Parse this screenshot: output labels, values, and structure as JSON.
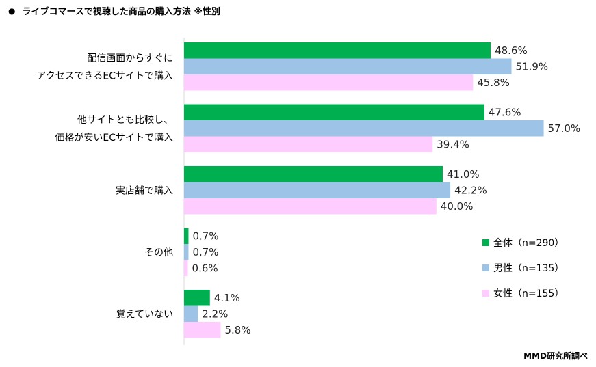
{
  "title": "ライブコマースで視聴した商品の購入方法 ※性別",
  "title_marker": "●",
  "credit": "MMD研究所調べ",
  "chart_data": {
    "type": "bar",
    "orientation": "horizontal",
    "categories": [
      [
        "配信画面からすぐに",
        "アクセスできるECサイトで購入"
      ],
      [
        "他サイトとも比較し、",
        "価格が安いECサイトで購入"
      ],
      [
        "実店舗で購入"
      ],
      [
        "その他"
      ],
      [
        "覚えていない"
      ]
    ],
    "series": [
      {
        "name": "全体（n=290）",
        "color": "#00b050",
        "values": [
          48.6,
          47.6,
          41.0,
          0.7,
          4.1
        ]
      },
      {
        "name": "男性（n=135）",
        "color": "#9dc3e6",
        "values": [
          51.9,
          57.0,
          42.2,
          0.7,
          2.2
        ]
      },
      {
        "name": "女性（n=155）",
        "color": "#ffccff",
        "values": [
          45.8,
          39.4,
          40.0,
          0.6,
          5.8
        ]
      }
    ],
    "value_suffix": "%",
    "xlim": [
      0,
      60
    ],
    "grid": false,
    "legend_position": "right"
  }
}
